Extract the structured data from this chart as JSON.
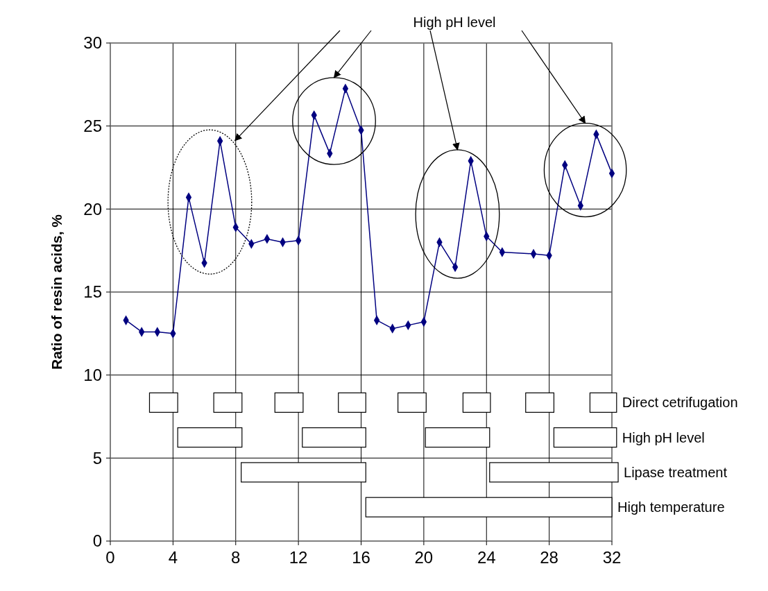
{
  "chart_data": {
    "type": "line",
    "ylabel": "Ratio of resin acids, %",
    "annotations": [
      "High pH level",
      "Direct cetrifugation",
      "High pH level",
      "Lipase treatment",
      "High temperature"
    ],
    "xlim": [
      0,
      32
    ],
    "xticks": [
      0,
      4,
      8,
      12,
      16,
      20,
      24,
      28,
      32
    ],
    "ylim": [
      0,
      30
    ],
    "yticks": [
      0,
      5,
      10,
      15,
      20,
      25,
      30
    ],
    "grid": true,
    "marker": "diamond",
    "series": [
      {
        "color": "#000080",
        "x": [
          1,
          2,
          3,
          4,
          5,
          6,
          7,
          8,
          9,
          10,
          11,
          12,
          13,
          14,
          15,
          16,
          17,
          18,
          19,
          20,
          21,
          22,
          23,
          24,
          25,
          27,
          28,
          29,
          30,
          31,
          32
        ],
        "values": [
          13.3,
          12.6,
          12.6,
          12.5,
          20.7,
          16.75,
          24.1,
          18.9,
          17.9,
          18.2,
          18.0,
          18.1,
          25.65,
          23.35,
          27.25,
          24.75,
          13.3,
          12.8,
          13.0,
          13.2,
          18.0,
          16.5,
          22.9,
          18.35,
          17.4,
          17.3,
          17.2,
          22.65,
          20.2,
          24.5,
          22.15
        ]
      }
    ]
  }
}
